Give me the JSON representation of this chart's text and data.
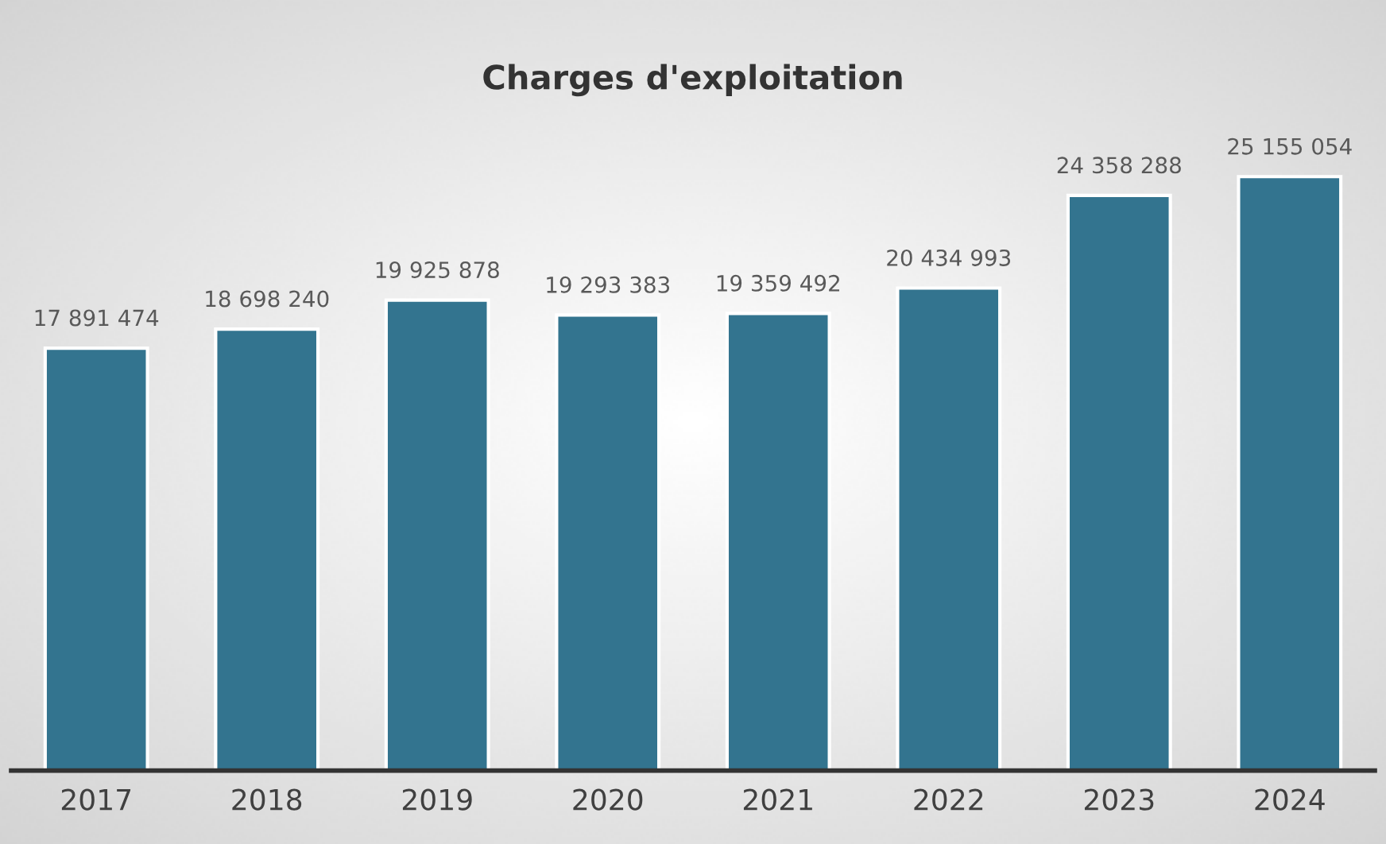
{
  "chart_data": {
    "type": "bar",
    "title": "Charges d'exploitation",
    "categories": [
      "2017",
      "2018",
      "2019",
      "2020",
      "2021",
      "2022",
      "2023",
      "2024"
    ],
    "values": [
      17891474,
      18698240,
      19925878,
      19293383,
      19359492,
      20434993,
      24358288,
      25155054
    ],
    "value_labels": [
      "17 891 474",
      "18 698 240",
      "19 925 878",
      "19 293 383",
      "19 359 492",
      "20 434 993",
      "24 358 288",
      "25 155 054"
    ],
    "color": "#33748f",
    "grid": false,
    "legend": false,
    "tick_labels": "x"
  }
}
